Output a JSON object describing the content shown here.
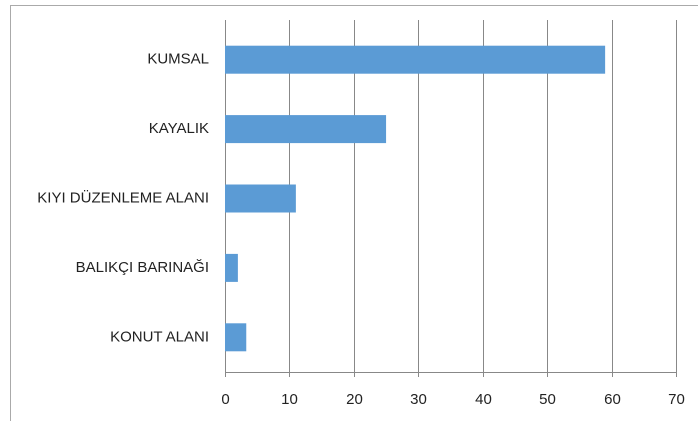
{
  "chart_data": {
    "type": "hbar",
    "categories": [
      "KUMSAL",
      "KAYALIK",
      "KIYI DÜZENLEME ALANI",
      "BALIKÇI BARINAĞI",
      "KONUT ALANI"
    ],
    "values": [
      59,
      25,
      11,
      2,
      3.3
    ],
    "color": "#5b9bd5",
    "xlim": [
      0,
      70
    ],
    "xticks": [
      0,
      10,
      20,
      30,
      40,
      50,
      60,
      70
    ],
    "grid": true
  }
}
